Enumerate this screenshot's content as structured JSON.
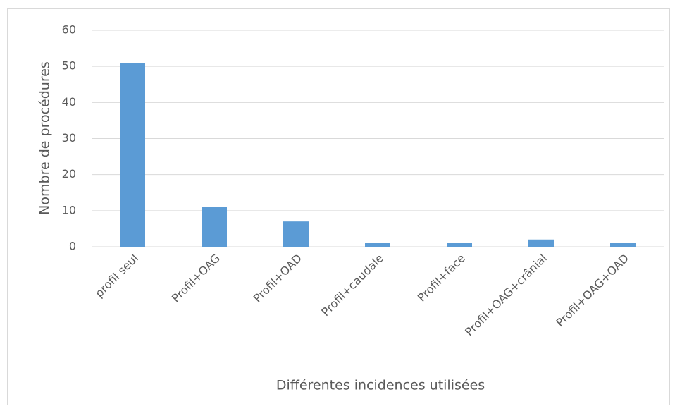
{
  "chart_data": {
    "type": "bar",
    "categories": [
      "profil seul",
      "Profil+OAG",
      "Profil+OAD",
      "Profil+caudale",
      "Profil+face",
      "Profil+OAG+crânial",
      "Profil+OAG+OAD"
    ],
    "values": [
      51,
      11,
      7,
      1,
      1,
      2,
      1
    ],
    "color": "#5b9bd5",
    "ylim": [
      0,
      60
    ],
    "yticks": [
      0,
      10,
      20,
      30,
      40,
      50,
      60
    ],
    "grid": true,
    "x_label": "Différentes incidences utilisées",
    "y_label": "Nombre de procédures"
  }
}
